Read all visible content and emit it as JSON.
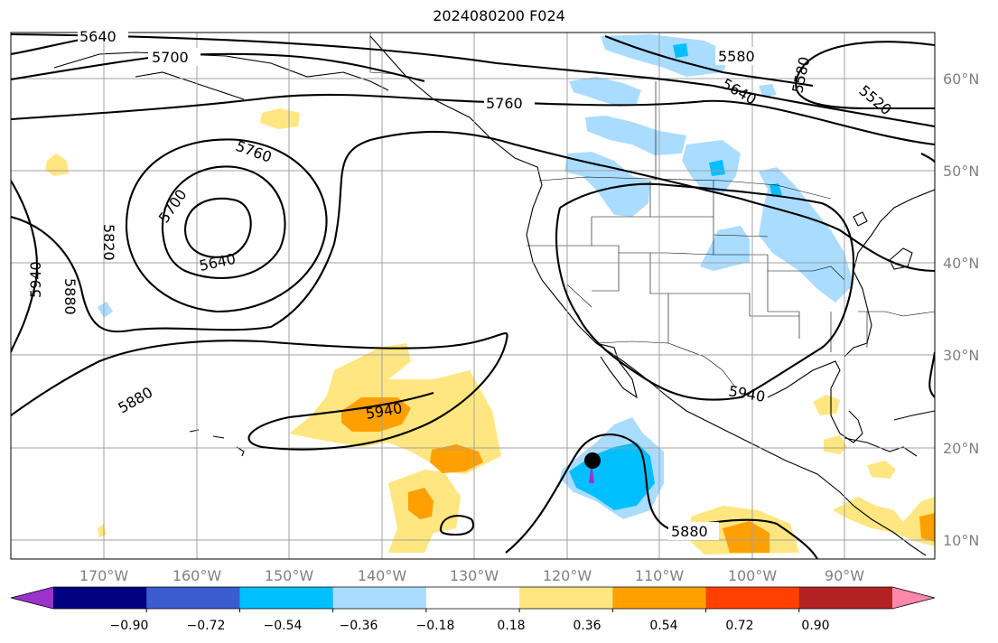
{
  "title": "2024080200 F024",
  "map": {
    "lon_labels": [
      "170°W",
      "160°W",
      "150°W",
      "140°W",
      "130°W",
      "120°W",
      "110°W",
      "100°W",
      "90°W"
    ],
    "lat_labels": [
      "60°N",
      "50°N",
      "40°N",
      "30°N",
      "20°N",
      "10°N"
    ],
    "contour_labels": [
      "5640",
      "5700",
      "5580",
      "5760",
      "5640",
      "5580",
      "5520",
      "5760",
      "5700",
      "5640",
      "5820",
      "5940",
      "5880",
      "5880",
      "5940",
      "5940",
      "5880"
    ],
    "colors": {
      "tick": "#808080",
      "grid": "#a0a0a0",
      "contour": "#000000"
    }
  },
  "colorbar": {
    "labels": [
      "−0.90",
      "−0.72",
      "−0.54",
      "−0.36",
      "−0.18",
      "0.18",
      "0.36",
      "0.54",
      "0.72",
      "0.90"
    ],
    "colors": [
      "#9933cc",
      "#000080",
      "#3b5bd0",
      "#00bfff",
      "#aadcff",
      "#ffffff",
      "#ffe680",
      "#ffa000",
      "#ff4000",
      "#b22222",
      "#ff88aa"
    ]
  }
}
